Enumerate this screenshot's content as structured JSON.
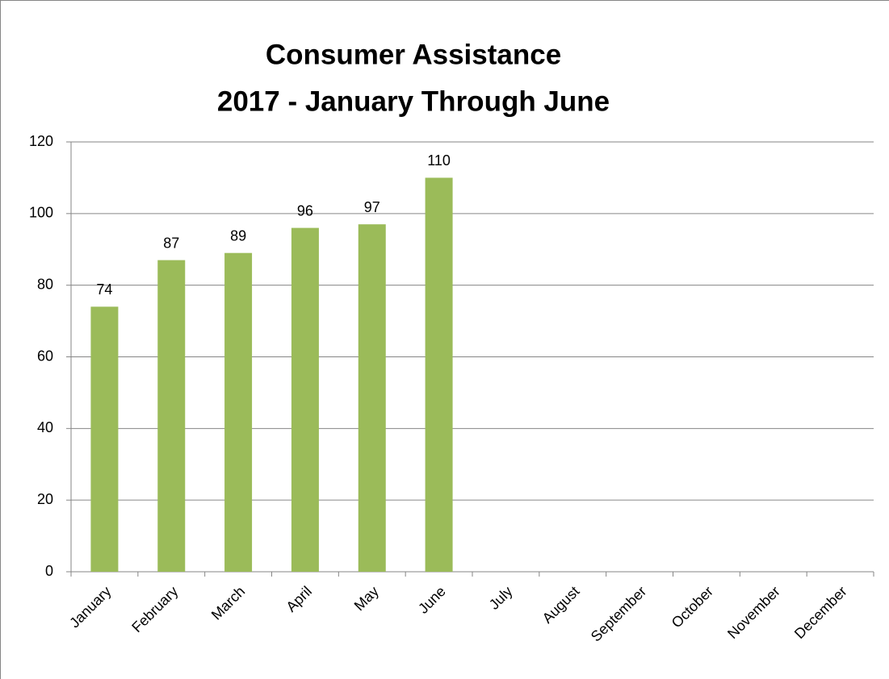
{
  "chart_data": {
    "type": "bar",
    "title": "Consumer Assistance",
    "subtitle": "2017 - January Through June",
    "categories": [
      "January",
      "February",
      "March",
      "April",
      "May",
      "June",
      "July",
      "August",
      "September",
      "October",
      "November",
      "December"
    ],
    "values": [
      74,
      87,
      89,
      96,
      97,
      110,
      null,
      null,
      null,
      null,
      null,
      null
    ],
    "color": "#9bbb59",
    "ylim": [
      0,
      120
    ],
    "yticks": [
      0,
      20,
      40,
      60,
      80,
      100,
      120
    ],
    "grid": true
  }
}
